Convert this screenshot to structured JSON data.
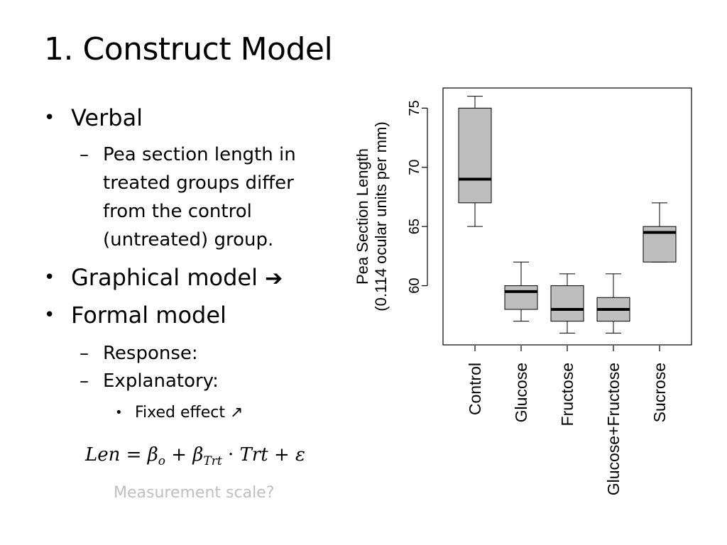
{
  "slide": {
    "title": "1. Construct Model",
    "bullets": {
      "verbal": "Verbal",
      "verbal_detail": "Pea section length in treated groups differ from the control (untreated) group.",
      "graphical": "Graphical model",
      "graphical_arrow_icon": "right-arrow-icon",
      "formal": "Formal model",
      "response": "Response:",
      "explanatory": "Explanatory:",
      "fixed_effect": "Fixed effect",
      "fixed_effect_icon": "diagonal-arrow-icon"
    },
    "formula": {
      "lhs": "Len",
      "eq": "=",
      "beta": "β",
      "sub_o": "o",
      "plus": "+",
      "sub_trt": "Trt",
      "dot": "·",
      "trt": "Trt",
      "epsilon": "ε"
    },
    "measurement_note": "Measurement scale?"
  },
  "chart_data": {
    "type": "boxplot",
    "ylabel_line1": "Pea Section Length",
    "ylabel_line2": "(0.114 ocular units per mm)",
    "ylim": [
      55,
      76.7
    ],
    "yticks": [
      60,
      65,
      70,
      75
    ],
    "categories": [
      "Control",
      "Glucose",
      "Fructose",
      "Glucose+Fructose",
      "Sucrose"
    ],
    "boxes": [
      {
        "whisker_low": 65,
        "q1": 67,
        "median": 69,
        "q3": 75,
        "whisker_high": 76
      },
      {
        "whisker_low": 57,
        "q1": 58,
        "median": 59.5,
        "q3": 60,
        "whisker_high": 62
      },
      {
        "whisker_low": 56,
        "q1": 57,
        "median": 58,
        "q3": 60,
        "whisker_high": 61
      },
      {
        "whisker_low": 56,
        "q1": 57,
        "median": 58,
        "q3": 59,
        "whisker_high": 61
      },
      {
        "whisker_low": 62,
        "q1": 62,
        "median": 64.5,
        "q3": 65,
        "whisker_high": 67
      }
    ],
    "box_fill": "#bebebe",
    "grid": false
  }
}
